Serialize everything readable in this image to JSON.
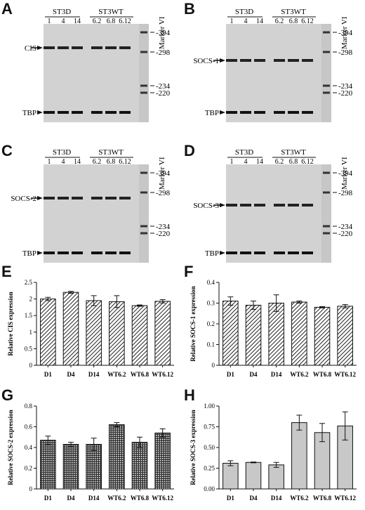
{
  "figure": {
    "gels": [
      {
        "letter": "A",
        "group1": "ST3D",
        "group2": "ST3WT",
        "lanes": [
          "1",
          "4",
          "14",
          "6.2",
          "6.8",
          "6.12"
        ],
        "marker": "Marker VI",
        "target": "CIS",
        "ctrl": "TBP",
        "sizes": [
          "394",
          "298",
          "234",
          "220"
        ]
      },
      {
        "letter": "B",
        "group1": "ST3D",
        "group2": "ST3WT",
        "lanes": [
          "1",
          "4",
          "14",
          "6.2",
          "6.8",
          "6.12"
        ],
        "marker": "Marker VI",
        "target": "SOCS-1",
        "ctrl": "TBP",
        "sizes": [
          "394",
          "298",
          "234",
          "220"
        ]
      },
      {
        "letter": "C",
        "group1": "ST3D",
        "group2": "ST3WT",
        "lanes": [
          "1",
          "4",
          "14",
          "6.2",
          "6.8",
          "6.12"
        ],
        "marker": "Marker VI",
        "target": "SOCS-2",
        "ctrl": "TBP",
        "sizes": [
          "394",
          "298",
          "234",
          "220"
        ]
      },
      {
        "letter": "D",
        "group1": "ST3D",
        "group2": "ST3WT",
        "lanes": [
          "1",
          "4",
          "14",
          "6.2",
          "6.8",
          "6.12"
        ],
        "marker": "Marker VI",
        "target": "SOCS-3",
        "ctrl": "TBP",
        "sizes": [
          "394",
          "298",
          "234",
          "220"
        ]
      }
    ]
  },
  "chart_data": [
    {
      "letter": "E",
      "type": "bar",
      "categories": [
        "D1",
        "D4",
        "D14",
        "WT6.2",
        "WT6.8",
        "WT6.12"
      ],
      "values": [
        2.0,
        2.2,
        1.95,
        1.92,
        1.8,
        1.93
      ],
      "errors": [
        0.05,
        0.03,
        0.15,
        0.18,
        0.02,
        0.05
      ],
      "ylabel": "Relative CIS expression",
      "ylim": [
        0,
        2.5
      ],
      "yticks": [
        "0",
        "0.5",
        "1",
        "1.5",
        "2",
        "2.5"
      ],
      "pattern": "diag",
      "grid": false
    },
    {
      "letter": "F",
      "type": "bar",
      "categories": [
        "D1",
        "D4",
        "D14",
        "WT6.2",
        "WT6.8",
        "WT6.12"
      ],
      "values": [
        0.31,
        0.29,
        0.3,
        0.305,
        0.28,
        0.285
      ],
      "errors": [
        0.02,
        0.02,
        0.04,
        0.005,
        0.003,
        0.008
      ],
      "ylabel": "Relative SOCS-1 expression",
      "ylim": [
        0,
        0.4
      ],
      "yticks": [
        "0",
        "0.1",
        "0.2",
        "0.3",
        "0.4"
      ],
      "pattern": "diag",
      "grid": false
    },
    {
      "letter": "G",
      "type": "bar",
      "categories": [
        "D1",
        "D4",
        "D14",
        "WT6.2",
        "WT6.8",
        "WT6.12"
      ],
      "values": [
        0.47,
        0.43,
        0.43,
        0.62,
        0.45,
        0.54
      ],
      "errors": [
        0.04,
        0.02,
        0.06,
        0.02,
        0.05,
        0.04
      ],
      "ylabel": "Relative SOCS-2 expression",
      "ylim": [
        0,
        0.8
      ],
      "yticks": [
        "0",
        "0.2",
        "0.4",
        "0.6",
        "0.8"
      ],
      "pattern": "cross",
      "grid": false
    },
    {
      "letter": "H",
      "type": "bar",
      "categories": [
        "D1",
        "D4",
        "D14",
        "WT6.2",
        "WT6.8",
        "WT6.12"
      ],
      "values": [
        0.31,
        0.32,
        0.29,
        0.8,
        0.68,
        0.76
      ],
      "errors": [
        0.03,
        0.005,
        0.03,
        0.09,
        0.11,
        0.17
      ],
      "ylabel": "Relative SOCS-3 expression",
      "ylim": [
        0,
        1.0
      ],
      "yticks": [
        "0.00",
        "0.25",
        "0.50",
        "0.75",
        "1.00"
      ],
      "pattern": "solid",
      "grid": false
    }
  ]
}
